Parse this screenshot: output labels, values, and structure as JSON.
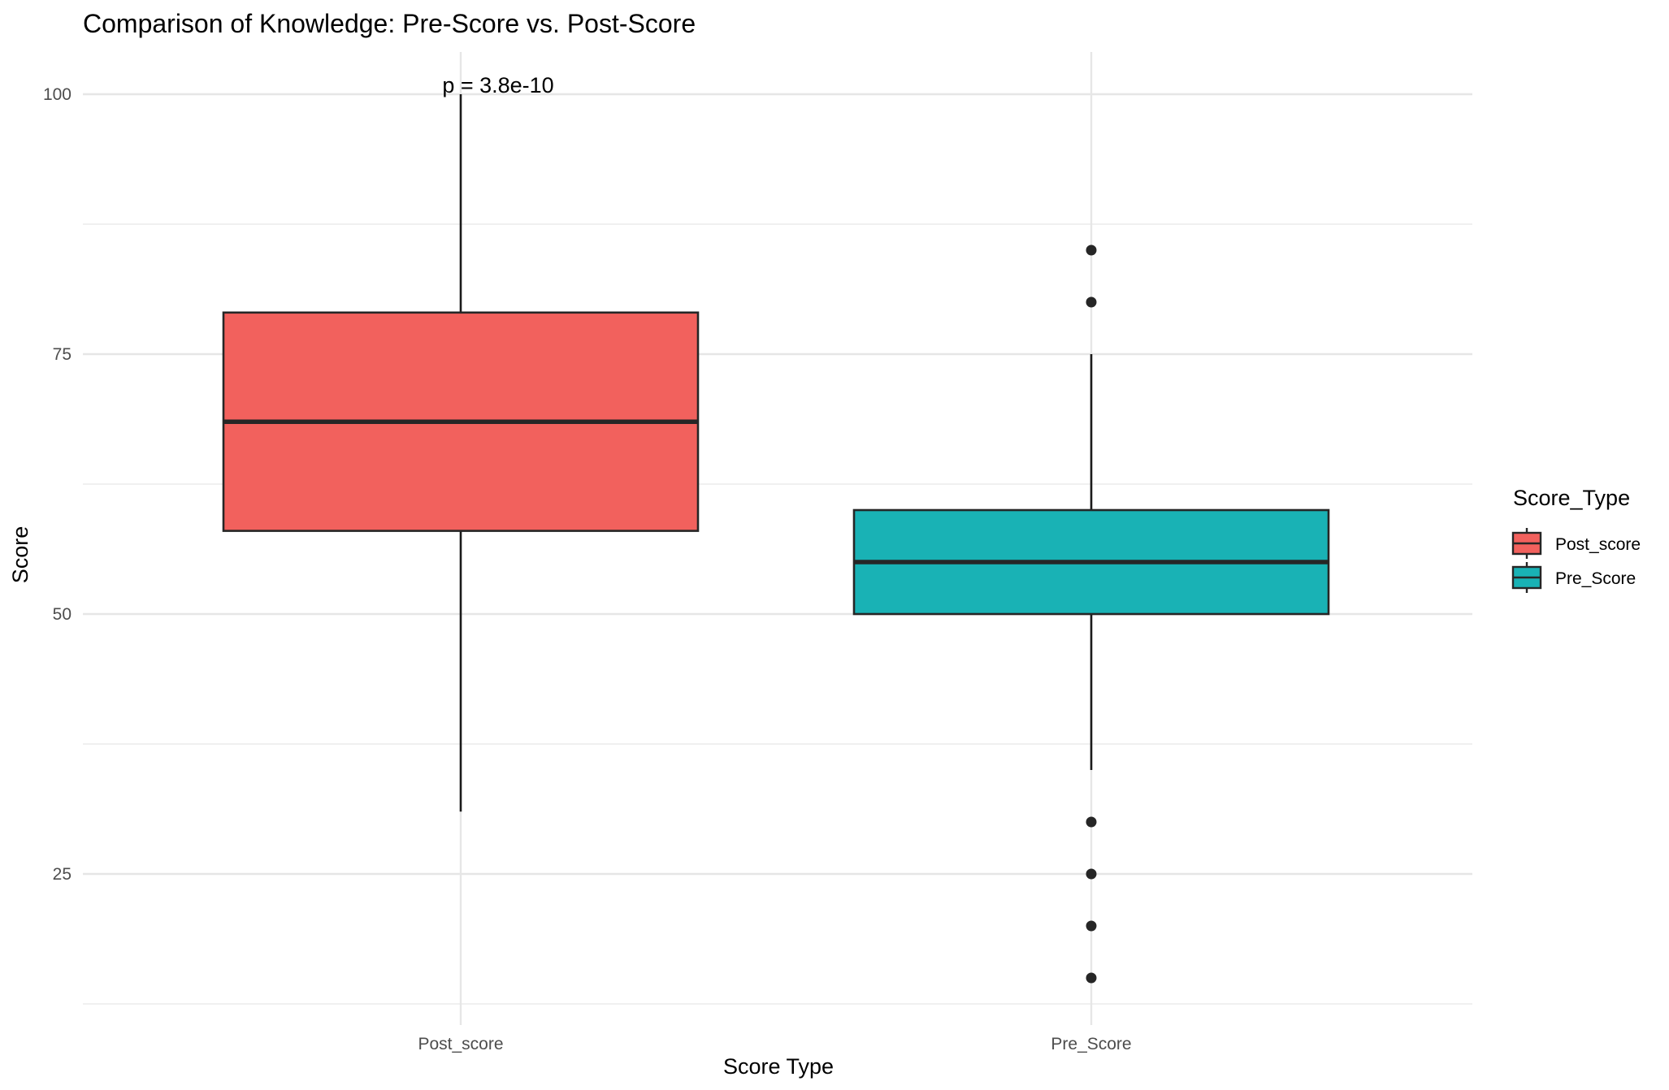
{
  "chart_data": {
    "type": "boxplot",
    "title": "Comparison of Knowledge: Pre-Score vs. Post-Score",
    "xlabel": "Score Type",
    "ylabel": "Score",
    "ylim": [
      12,
      102
    ],
    "y_ticks": [
      25,
      50,
      75,
      100
    ],
    "grid": true,
    "categories": [
      "Post_score",
      "Pre_Score"
    ],
    "boxes": [
      {
        "category": "Post_score",
        "color": "#F2615D",
        "whisker_low": 31,
        "q1": 58,
        "median": 68.5,
        "q3": 79,
        "whisker_high": 100,
        "outliers": []
      },
      {
        "category": "Pre_Score",
        "color": "#19B2B5",
        "whisker_low": 35,
        "q1": 50,
        "median": 55,
        "q3": 60,
        "whisker_high": 75,
        "outliers": [
          85,
          80,
          30,
          25,
          20,
          15
        ]
      }
    ],
    "annotation": {
      "text": "p = 3.8e-10",
      "x_category": "Post_score",
      "y": 100
    },
    "legend": {
      "title": "Score_Type",
      "position": "right",
      "items": [
        {
          "label": "Post_score",
          "color": "#F2615D"
        },
        {
          "label": "Pre_Score",
          "color": "#19B2B5"
        }
      ]
    }
  }
}
